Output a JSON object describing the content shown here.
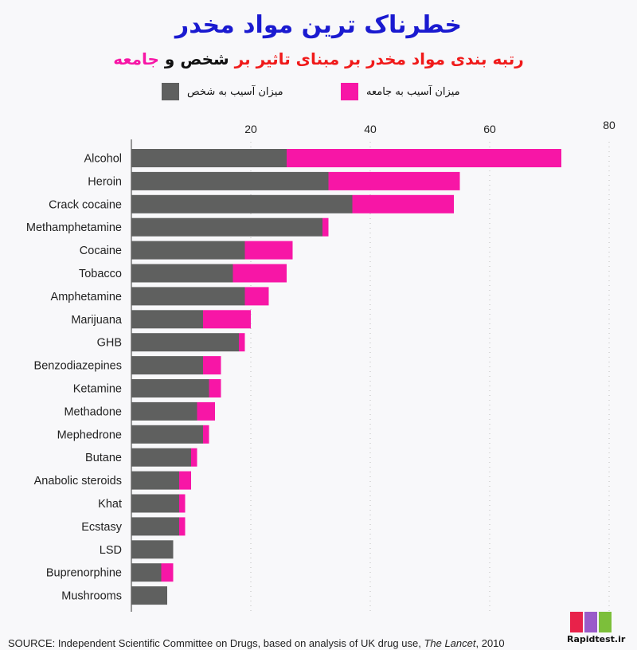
{
  "header": {
    "title": "خطرناک ترین مواد مخدر",
    "subtitle_part1": "رتبه بندی مواد مخدر بر مبنای تاثیر بر",
    "subtitle_part2": "شخص و",
    "subtitle_part3": "جامعه"
  },
  "footer": {
    "source_prefix": "SOURCE: Independent Scientific Committee on Drugs, based on analysis of UK drug use, ",
    "source_journal": "The Lancet",
    "source_suffix": ", 2010",
    "logo_text": "Rapidtest.ir"
  },
  "colors": {
    "user": "#5f605f",
    "society": "#f716a6",
    "title": "#1a1ad0",
    "subtitle_red": "#f01a1a"
  },
  "chart_data": {
    "type": "bar",
    "orientation": "horizontal",
    "stacked": true,
    "xlim": [
      0,
      80
    ],
    "xticks": [
      20,
      40,
      60,
      80
    ],
    "grid": true,
    "legend_position": "top",
    "categories": [
      "Alcohol",
      "Heroin",
      "Crack cocaine",
      "Methamphetamine",
      "Cocaine",
      "Tobacco",
      "Amphetamine",
      "Marijuana",
      "GHB",
      "Benzodiazepines",
      "Ketamine",
      "Methadone",
      "Mephedrone",
      "Butane",
      "Anabolic steroids",
      "Khat",
      "Ecstasy",
      "LSD",
      "Buprenorphine",
      "Mushrooms"
    ],
    "series": [
      {
        "name": "میزان آسیب به شخص",
        "color": "#5f605f",
        "values": [
          26,
          33,
          37,
          32,
          19,
          17,
          19,
          12,
          18,
          12,
          13,
          11,
          12,
          10,
          8,
          8,
          8,
          7,
          5,
          6
        ]
      },
      {
        "name": "میزان آسیب به جامعه",
        "color": "#f716a6",
        "values": [
          46,
          22,
          17,
          1,
          8,
          9,
          4,
          8,
          1,
          3,
          2,
          3,
          1,
          1,
          2,
          1,
          1,
          0,
          2,
          0
        ]
      }
    ]
  }
}
